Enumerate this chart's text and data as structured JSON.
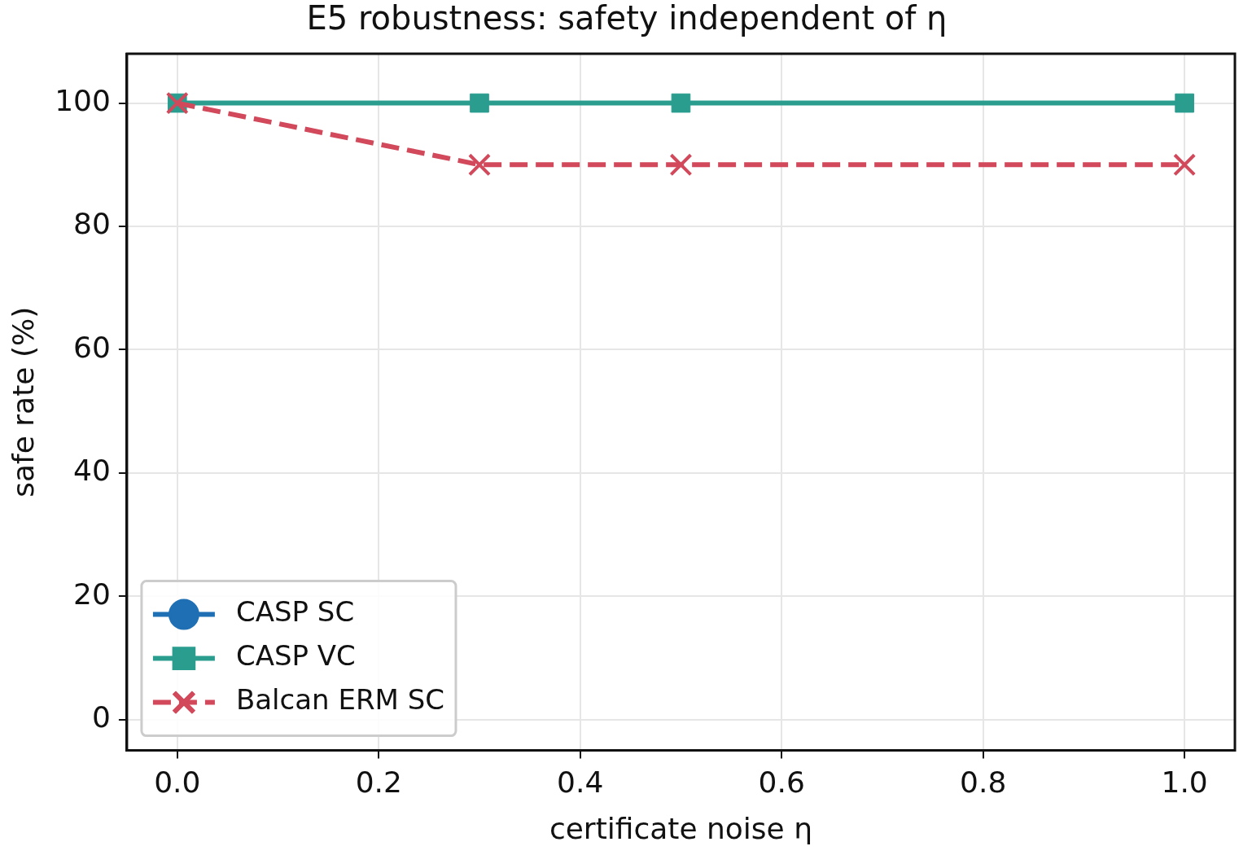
{
  "chart_data": {
    "type": "line",
    "title": "E5 robustness: safety independent of η",
    "xlabel": "certificate noise η",
    "ylabel": "safe rate (%)",
    "x": [
      0.0,
      0.3,
      0.5,
      1.0
    ],
    "series": [
      {
        "name": "CASP SC",
        "color": "#1f6fb4",
        "values": [
          null,
          null,
          null,
          null
        ],
        "marker": "circle",
        "line_style": "solid"
      },
      {
        "name": "CASP VC",
        "color": "#2a9d8f",
        "values": [
          100,
          100,
          100,
          100
        ],
        "marker": "square",
        "line_style": "solid"
      },
      {
        "name": "Balcan ERM SC",
        "color": "#d1495b",
        "values": [
          100,
          90,
          90,
          90
        ],
        "marker": "cross",
        "line_style": "dashed"
      }
    ],
    "xlim": [
      -0.05,
      1.05
    ],
    "xticks": [
      {
        "value": 0,
        "label": "0.0"
      },
      {
        "value": 0.2,
        "label": "0.2"
      },
      {
        "value": 0.4,
        "label": "0.4"
      },
      {
        "value": 0.6,
        "label": "0.6"
      },
      {
        "value": 0.8,
        "label": "0.8"
      },
      {
        "value": 1,
        "label": "1.0"
      }
    ],
    "ylim": [
      -5,
      108
    ],
    "yticks": [
      0,
      20,
      40,
      60,
      80,
      100
    ],
    "grid": true,
    "legend": "bottom left"
  }
}
